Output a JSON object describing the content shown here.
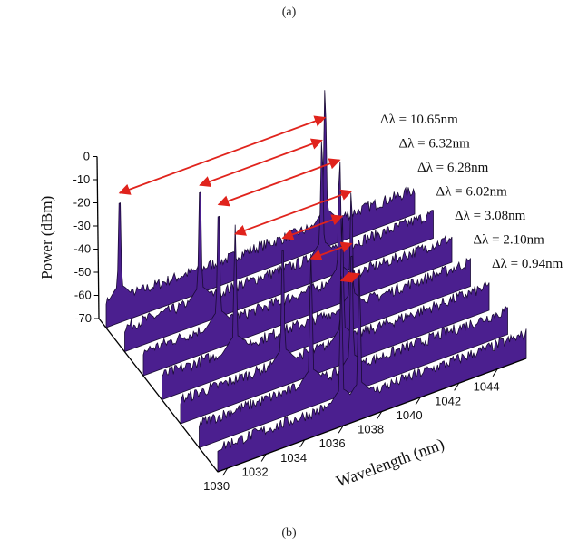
{
  "figure": {
    "label_top": "(a)",
    "label_bottom": "(b)"
  },
  "colors": {
    "fill": "#4b1f8f",
    "outline": "#1a0b35",
    "arrow": "#e0231c",
    "axis": "#000000"
  },
  "chart_data": {
    "type": "line",
    "style": "3d-waterfall",
    "xlabel": "Wavelength (nm)",
    "ylabel": "Power (dBm)",
    "x_ticks": [
      1030,
      1032,
      1034,
      1036,
      1038,
      1040,
      1042,
      1044
    ],
    "y_ticks": [
      0,
      -10,
      -20,
      -30,
      -40,
      -50,
      -60,
      -70
    ],
    "xlim": [
      1029.5,
      1045.5
    ],
    "ylim": [
      -70,
      0
    ],
    "noise_floor_dBm": -62,
    "series": [
      {
        "peaks": [
          {
            "x": 1035.9,
            "y": -5
          },
          {
            "x": 1036.84,
            "y": -5
          }
        ],
        "annotation": "Δλ = 0.94nm"
      },
      {
        "peaks": [
          {
            "x": 1035.3,
            "y": -4
          },
          {
            "x": 1037.4,
            "y": -4
          }
        ],
        "annotation": "Δλ = 2.10nm"
      },
      {
        "peaks": [
          {
            "x": 1034.8,
            "y": -4
          },
          {
            "x": 1037.88,
            "y": -4
          }
        ],
        "annotation": "Δλ = 3.08nm"
      },
      {
        "peaks": [
          {
            "x": 1033.3,
            "y": -6
          },
          {
            "x": 1039.32,
            "y": -8
          }
        ],
        "annotation": "Δλ = 6.02nm"
      },
      {
        "peaks": [
          {
            "x": 1033.4,
            "y": -6
          },
          {
            "x": 1039.68,
            "y": -6
          }
        ],
        "annotation": "Δλ = 6.28nm"
      },
      {
        "peaks": [
          {
            "x": 1033.4,
            "y": -6
          },
          {
            "x": 1039.72,
            "y": -8
          }
        ],
        "annotation": "Δλ = 6.32nm"
      },
      {
        "peaks": [
          {
            "x": 1030.2,
            "y": -12
          },
          {
            "x": 1040.85,
            "y": 0
          }
        ],
        "annotation": "Δλ = 10.65nm"
      }
    ]
  }
}
